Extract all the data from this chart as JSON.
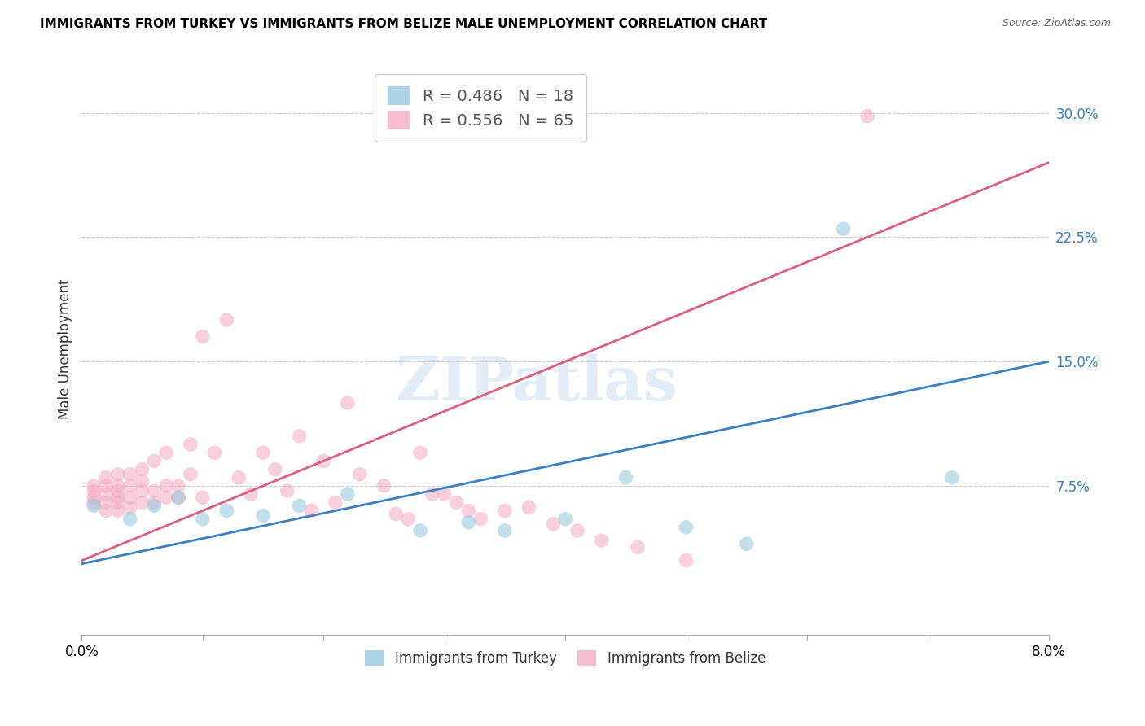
{
  "title": "IMMIGRANTS FROM TURKEY VS IMMIGRANTS FROM BELIZE MALE UNEMPLOYMENT CORRELATION CHART",
  "source": "Source: ZipAtlas.com",
  "ylabel": "Male Unemployment",
  "ytick_labels": [
    "7.5%",
    "15.0%",
    "22.5%",
    "30.0%"
  ],
  "ytick_values": [
    0.075,
    0.15,
    0.225,
    0.3
  ],
  "xlim": [
    0.0,
    0.08
  ],
  "ylim": [
    -0.015,
    0.33
  ],
  "legend_r_turkey": "R = 0.486",
  "legend_n_turkey": "N = 18",
  "legend_r_belize": "R = 0.556",
  "legend_n_belize": "N = 65",
  "color_turkey": "#92c5de",
  "color_belize": "#f4a9c0",
  "line_color_turkey": "#3a7fbf",
  "line_color_belize": "#d9607a",
  "watermark": "ZIPatlas",
  "turkey_line": [
    0.028,
    0.15
  ],
  "belize_line": [
    0.03,
    0.27
  ],
  "turkey_x": [
    0.001,
    0.004,
    0.006,
    0.008,
    0.01,
    0.012,
    0.015,
    0.018,
    0.022,
    0.028,
    0.032,
    0.035,
    0.04,
    0.045,
    0.05,
    0.055,
    0.063,
    0.072
  ],
  "turkey_y": [
    0.063,
    0.055,
    0.063,
    0.068,
    0.055,
    0.06,
    0.057,
    0.063,
    0.07,
    0.048,
    0.053,
    0.048,
    0.055,
    0.08,
    0.05,
    0.04,
    0.23,
    0.08
  ],
  "belize_x": [
    0.001,
    0.001,
    0.001,
    0.001,
    0.002,
    0.002,
    0.002,
    0.002,
    0.002,
    0.003,
    0.003,
    0.003,
    0.003,
    0.003,
    0.003,
    0.004,
    0.004,
    0.004,
    0.004,
    0.005,
    0.005,
    0.005,
    0.005,
    0.006,
    0.006,
    0.006,
    0.007,
    0.007,
    0.007,
    0.008,
    0.008,
    0.009,
    0.009,
    0.01,
    0.01,
    0.011,
    0.012,
    0.013,
    0.014,
    0.015,
    0.016,
    0.017,
    0.018,
    0.019,
    0.02,
    0.021,
    0.022,
    0.023,
    0.025,
    0.026,
    0.027,
    0.028,
    0.029,
    0.03,
    0.031,
    0.032,
    0.033,
    0.035,
    0.037,
    0.039,
    0.041,
    0.043,
    0.046,
    0.05,
    0.065
  ],
  "belize_y": [
    0.065,
    0.068,
    0.072,
    0.075,
    0.06,
    0.065,
    0.07,
    0.075,
    0.08,
    0.06,
    0.065,
    0.068,
    0.072,
    0.075,
    0.082,
    0.062,
    0.068,
    0.075,
    0.082,
    0.065,
    0.072,
    0.078,
    0.085,
    0.065,
    0.072,
    0.09,
    0.068,
    0.075,
    0.095,
    0.068,
    0.075,
    0.082,
    0.1,
    0.165,
    0.068,
    0.095,
    0.175,
    0.08,
    0.07,
    0.095,
    0.085,
    0.072,
    0.105,
    0.06,
    0.09,
    0.065,
    0.125,
    0.082,
    0.075,
    0.058,
    0.055,
    0.095,
    0.07,
    0.07,
    0.065,
    0.06,
    0.055,
    0.06,
    0.062,
    0.052,
    0.048,
    0.042,
    0.038,
    0.03,
    0.298
  ]
}
